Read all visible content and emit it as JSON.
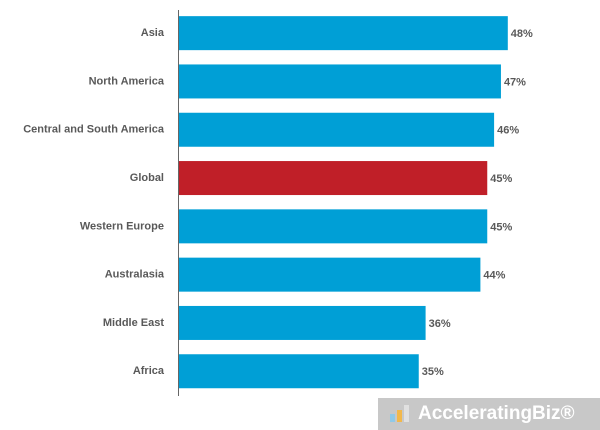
{
  "chart_data": {
    "type": "bar",
    "orientation": "horizontal",
    "categories": [
      "Asia",
      "North America",
      "Central and South America",
      "Global",
      "Western Europe",
      "Australasia",
      "Middle East",
      "Africa"
    ],
    "values": [
      48,
      47,
      46,
      45,
      45,
      44,
      36,
      35
    ],
    "value_labels": [
      "48%",
      "47%",
      "46%",
      "45%",
      "45%",
      "44%",
      "36%",
      "35%"
    ],
    "colors": [
      "#009fd6",
      "#009fd6",
      "#009fd6",
      "#c01f28",
      "#009fd6",
      "#009fd6",
      "#009fd6",
      "#009fd6"
    ],
    "watermark": "AcceleratingBiz®"
  }
}
